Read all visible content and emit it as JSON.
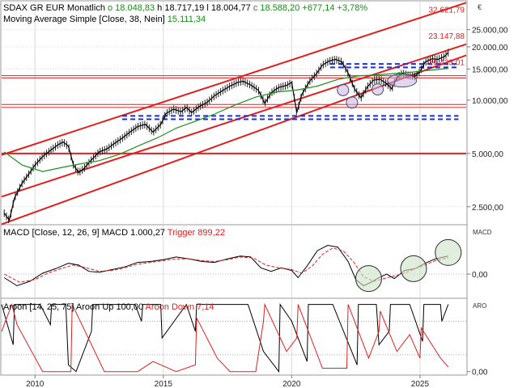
{
  "chart_data": [
    {
      "type": "line",
      "panel": "price",
      "title": "SDAX GR EUR",
      "interval": "Monatlich",
      "ohlc_labels": [
        "o 18.048,83",
        "h 18.717,19",
        "l 18.004,77",
        "c 18.588,20",
        "+677,14",
        "+3,78%"
      ],
      "indicator_label": "Moving Average Simple",
      "indicator_params": "[Close, 38, Nein]",
      "indicator_value": "15.111,34",
      "currency_marker": "€",
      "scale": "log",
      "ylim": [
        2000,
        36000
      ],
      "xlim": [
        2008.7,
        2026.8
      ],
      "y_ticks": [
        {
          "v": 2500,
          "label": "2.500,00"
        },
        {
          "v": 5000,
          "label": "5.000,00"
        },
        {
          "v": 10000,
          "label": "10.000,00"
        },
        {
          "v": 15000,
          "label": "15.000,00"
        },
        {
          "v": 20000,
          "label": "20.000,00"
        },
        {
          "v": 25000,
          "label": "25.000,00"
        }
      ],
      "x_ticks": [
        {
          "v": 2010,
          "label": "2010"
        },
        {
          "v": 2015,
          "label": "2015"
        },
        {
          "v": 2020,
          "label": "2020"
        },
        {
          "v": 2025,
          "label": "2025"
        }
      ],
      "series": [
        {
          "kind": "close",
          "x": [
            2008.8,
            2009.0,
            2009.2,
            2009.5,
            2009.8,
            2010.0,
            2010.3,
            2010.6,
            2010.9,
            2011.1,
            2011.3,
            2011.5,
            2011.7,
            2011.9,
            2012.2,
            2012.5,
            2012.8,
            2013.1,
            2013.4,
            2013.7,
            2014.0,
            2014.3,
            2014.6,
            2014.9,
            2015.1,
            2015.4,
            2015.7,
            2015.9,
            2016.1,
            2016.4,
            2016.7,
            2017.0,
            2017.3,
            2017.6,
            2017.9,
            2018.1,
            2018.4,
            2018.7,
            2018.95,
            2019.2,
            2019.5,
            2019.8,
            2020.0,
            2020.2,
            2020.4,
            2020.7,
            2020.95,
            2021.2,
            2021.45,
            2021.7,
            2021.95,
            2022.2,
            2022.45,
            2022.7,
            2022.95,
            2023.2,
            2023.45,
            2023.7,
            2023.9,
            2024.1,
            2024.3,
            2024.55,
            2024.8,
            2025.0,
            2025.2,
            2025.45,
            2025.7,
            2025.95,
            2026.1
          ],
          "y": [
            2300,
            2100,
            2800,
            3400,
            3900,
            4300,
            4800,
            5200,
            5600,
            5800,
            5500,
            4300,
            3900,
            4100,
            4600,
            5100,
            5300,
            5700,
            6100,
            6600,
            7100,
            7300,
            6600,
            7300,
            8400,
            8900,
            8600,
            9100,
            8500,
            9200,
            9700,
            10600,
            11300,
            12000,
            12600,
            12800,
            12200,
            11400,
            9600,
            11000,
            11800,
            12100,
            12600,
            8500,
            10800,
            12800,
            14000,
            15800,
            16600,
            17000,
            16500,
            14200,
            11600,
            10300,
            11900,
            13000,
            13100,
            12400,
            11600,
            13400,
            14200,
            13800,
            13600,
            14500,
            16400,
            17100,
            17000,
            17600,
            18588
          ]
        },
        {
          "kind": "moving-average",
          "x": [
            2008.8,
            2009.5,
            2010.3,
            2011.0,
            2011.7,
            2012.5,
            2013.3,
            2014.0,
            2014.8,
            2015.5,
            2016.3,
            2017.0,
            2017.8,
            2018.6,
            2019.4,
            2020.2,
            2021.0,
            2021.8,
            2022.6,
            2023.4,
            2024.2,
            2025.0,
            2025.7,
            2026.1
          ],
          "y": [
            5100,
            4300,
            3950,
            4150,
            4350,
            4550,
            4950,
            5500,
            6150,
            6950,
            7650,
            8350,
            9400,
            10400,
            11100,
            11400,
            12000,
            13100,
            13700,
            13900,
            14200,
            14550,
            14900,
            15111
          ]
        }
      ],
      "lines": [
        {
          "kind": "channel-upper",
          "x": [
            2008.7,
            2026.8
          ],
          "y": [
            4900,
            35500
          ]
        },
        {
          "kind": "channel-middle",
          "x": [
            2008.7,
            2026.8
          ],
          "y": [
            2850,
            20700
          ]
        },
        {
          "kind": "channel-lower",
          "x": [
            2008.7,
            2026.8
          ],
          "y": [
            1990,
            17900
          ]
        },
        {
          "kind": "horizontal-support",
          "y": 5000
        },
        {
          "kind": "horizontal-support",
          "y": 9100
        },
        {
          "kind": "horizontal-support",
          "y": 9450
        },
        {
          "kind": "horizontal-resistance",
          "y": 13350
        },
        {
          "kind": "horizontal-resistance",
          "y": 13750
        },
        {
          "kind": "dashed-level",
          "x": [
            2013.4,
            2026.5
          ],
          "y": 8150
        },
        {
          "kind": "dashed-level",
          "x": [
            2013.4,
            2026.5
          ],
          "y": 7800
        },
        {
          "kind": "dashed-level",
          "x": [
            2021.5,
            2026.5
          ],
          "y": 16000
        },
        {
          "kind": "dashed-level",
          "x": [
            2021.5,
            2026.5
          ],
          "y": 15300
        }
      ],
      "ellipses": [
        {
          "x": 2022.0,
          "y": 11400
        },
        {
          "x": 2022.35,
          "y": 9700
        },
        {
          "x": 2023.35,
          "y": 11500
        },
        {
          "x": 2024.3,
          "y": 12900
        }
      ],
      "annotations": [
        {
          "label": "32.621,79",
          "y": 32621.79
        },
        {
          "label": "23.147,88",
          "y": 23147.88
        },
        {
          "label": "16.423,01",
          "y": 16423.01
        }
      ]
    },
    {
      "type": "line",
      "panel": "macd",
      "title": "MACD",
      "params": "[Close, 12, 26, 9]",
      "value_label": "MACD 1.000,27",
      "trigger_label": "Trigger 899,22",
      "axis_label": "MACD",
      "ylim": [
        -1300,
        2700
      ],
      "y_ticks": [
        {
          "v": 0,
          "label": "0,00"
        }
      ],
      "series": [
        {
          "kind": "macd",
          "x": [
            2008.8,
            2009.3,
            2009.8,
            2010.3,
            2010.8,
            2011.3,
            2011.7,
            2012.1,
            2012.5,
            2013.0,
            2013.5,
            2014.0,
            2014.5,
            2015.0,
            2015.5,
            2016.0,
            2016.5,
            2017.0,
            2017.5,
            2018.0,
            2018.4,
            2018.8,
            2019.2,
            2019.6,
            2020.0,
            2020.25,
            2020.6,
            2021.0,
            2021.4,
            2021.8,
            2022.2,
            2022.5,
            2022.8,
            2023.1,
            2023.4,
            2023.7,
            2024.0,
            2024.4,
            2024.8,
            2025.2,
            2025.6,
            2026.1
          ],
          "y": [
            -200,
            -650,
            -400,
            50,
            300,
            600,
            500,
            150,
            100,
            250,
            400,
            650,
            700,
            800,
            950,
            850,
            700,
            650,
            850,
            1000,
            950,
            350,
            150,
            350,
            200,
            -200,
            450,
            1300,
            1600,
            1500,
            700,
            -300,
            -650,
            -450,
            -200,
            0,
            -250,
            200,
            300,
            600,
            850,
            1000
          ]
        },
        {
          "kind": "trigger",
          "x": [
            2008.8,
            2009.4,
            2010.0,
            2010.5,
            2011.0,
            2011.5,
            2012.0,
            2012.5,
            2013.0,
            2013.5,
            2014.0,
            2014.5,
            2015.0,
            2015.5,
            2016.0,
            2016.5,
            2017.0,
            2017.5,
            2018.0,
            2018.5,
            2019.0,
            2019.5,
            2020.0,
            2020.4,
            2020.8,
            2021.2,
            2021.6,
            2022.0,
            2022.4,
            2022.8,
            2023.2,
            2023.6,
            2024.0,
            2024.4,
            2024.8,
            2025.2,
            2025.6,
            2026.1
          ],
          "y": [
            0,
            -450,
            -300,
            50,
            300,
            500,
            350,
            150,
            200,
            350,
            550,
            650,
            750,
            850,
            850,
            750,
            700,
            800,
            950,
            900,
            500,
            350,
            250,
            50,
            450,
            1100,
            1450,
            1300,
            700,
            -150,
            -400,
            -250,
            -100,
            50,
            300,
            500,
            750,
            899
          ]
        }
      ],
      "circles": [
        {
          "x": 2023.0,
          "y": -250
        },
        {
          "x": 2024.75,
          "y": 300
        },
        {
          "x": 2026.1,
          "y": 1200
        }
      ]
    },
    {
      "type": "line",
      "panel": "aroon",
      "title": "Aroon",
      "params": "[14, 25, 75]",
      "up_label": "Aroon Up 100,00",
      "down_label": "Aroon Down 7,14",
      "axis_label": "ARO",
      "ylim": [
        -4,
        108
      ],
      "y_ticks": [
        {
          "v": 0,
          "label": "0,00"
        }
      ],
      "reference_levels": [
        25,
        75
      ],
      "series": [
        {
          "kind": "aroon-up",
          "x": [
            2008.7,
            2009.15,
            2009.2,
            2010.2,
            2010.6,
            2010.65,
            2011.2,
            2011.3,
            2011.6,
            2012.2,
            2012.25,
            2013.9,
            2014.15,
            2014.2,
            2014.9,
            2014.95,
            2015.9,
            2016.25,
            2016.3,
            2017.4,
            2018.3,
            2018.9,
            2019.5,
            2019.55,
            2020.0,
            2020.6,
            2020.65,
            2021.6,
            2022.55,
            2022.6,
            2023.3,
            2023.4,
            2023.8,
            2023.85,
            2024.6,
            2025.1,
            2025.15,
            2025.8,
            2025.85,
            2026.1
          ],
          "y": [
            100,
            40,
            100,
            100,
            70,
            100,
            100,
            10,
            0,
            60,
            100,
            100,
            75,
            100,
            100,
            50,
            100,
            60,
            100,
            100,
            100,
            30,
            0,
            100,
            75,
            15,
            100,
            100,
            10,
            100,
            100,
            40,
            60,
            100,
            100,
            45,
            100,
            100,
            75,
            100
          ]
        },
        {
          "kind": "aroon-down",
          "x": [
            2008.7,
            2009.1,
            2009.3,
            2010.3,
            2011.4,
            2011.45,
            2012.7,
            2014.0,
            2014.6,
            2015.5,
            2016.25,
            2016.3,
            2017.1,
            2017.6,
            2018.6,
            2018.9,
            2018.95,
            2019.8,
            2020.2,
            2020.25,
            2021.2,
            2022.15,
            2022.2,
            2023.0,
            2023.4,
            2023.45,
            2024.1,
            2024.6,
            2025.0,
            2025.05,
            2025.8,
            2026.1
          ],
          "y": [
            60,
            100,
            70,
            0,
            0,
            100,
            0,
            0,
            15,
            0,
            10,
            80,
            20,
            0,
            0,
            75,
            100,
            30,
            50,
            100,
            5,
            5,
            100,
            20,
            60,
            90,
            30,
            55,
            20,
            65,
            20,
            7
          ]
        }
      ]
    }
  ]
}
